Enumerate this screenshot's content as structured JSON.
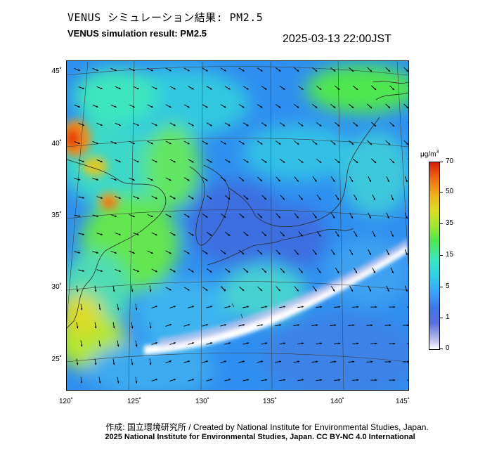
{
  "title_ja": "VENUS シミュレーション結果: PM2.5",
  "title_en": "VENUS simulation result: PM2.5",
  "timestamp": "2025-03-13 22:00JST",
  "map": {
    "lat_labels": [
      "45˚",
      "40˚",
      "35˚",
      "30˚",
      "25˚"
    ],
    "lon_labels": [
      "120˚",
      "125˚",
      "130˚",
      "135˚",
      "140˚",
      "145˚"
    ]
  },
  "colorbar": {
    "unit": "μg/m",
    "unit_sup": "3",
    "tick_labels": [
      "70",
      "50",
      "35",
      "15",
      "5",
      "1",
      "0"
    ],
    "colors": [
      "#ffffff",
      "#5a6edc",
      "#3ca0ff",
      "#32d2e6",
      "#50e650",
      "#dcdc28",
      "#f06e14",
      "#d21e0a"
    ]
  },
  "credit_line1": "作成: 国立環境研究所 / Created by National Institute for Environmental Studies, Japan.",
  "credit_line2": "2025 National Institute for Environmental Studies, Japan. CC BY-NC 4.0 International"
}
